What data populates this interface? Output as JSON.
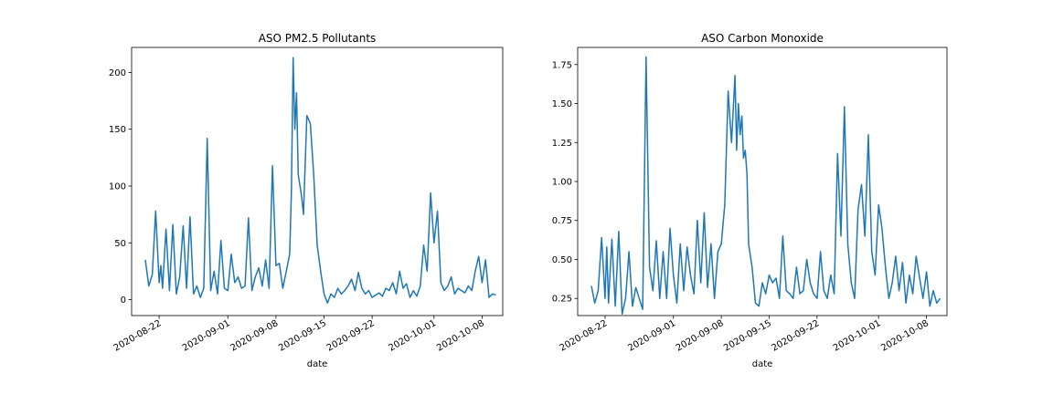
{
  "chart_data": [
    {
      "type": "line",
      "title": "ASO PM2.5 Pollutants",
      "xlabel": "date",
      "ylabel": "",
      "x_ticks": [
        "2020-08-22",
        "2020-09-01",
        "2020-09-08",
        "2020-09-15",
        "2020-09-22",
        "2020-10-01",
        "2020-10-08"
      ],
      "y_ticks": [
        "0",
        "50",
        "100",
        "150",
        "200"
      ],
      "xlim": [
        "2020-08-18",
        "2020-10-11"
      ],
      "ylim": [
        -14,
        222
      ],
      "grid": false,
      "legend": "none",
      "series_color": "#1f77b4",
      "series": [
        {
          "x": [
            "2020-08-20",
            "2020-08-20T12",
            "2020-08-21",
            "2020-08-21T12",
            "2020-08-22",
            "2020-08-22T06",
            "2020-08-22T12",
            "2020-08-23",
            "2020-08-23T12",
            "2020-08-24",
            "2020-08-24T12",
            "2020-08-25",
            "2020-08-25T12",
            "2020-08-26",
            "2020-08-26T12",
            "2020-08-27",
            "2020-08-27T12",
            "2020-08-28",
            "2020-08-28T12",
            "2020-08-29",
            "2020-08-29T12",
            "2020-08-30",
            "2020-08-30T12",
            "2020-08-31",
            "2020-08-31T12",
            "2020-09-01",
            "2020-09-01T12",
            "2020-09-02",
            "2020-09-02T12",
            "2020-09-03",
            "2020-09-03T12",
            "2020-09-04",
            "2020-09-04T12",
            "2020-09-05",
            "2020-09-05T12",
            "2020-09-06",
            "2020-09-06T12",
            "2020-09-07",
            "2020-09-07T12",
            "2020-09-08",
            "2020-09-08T12",
            "2020-09-09",
            "2020-09-09T12",
            "2020-09-10",
            "2020-09-10T06",
            "2020-09-10T12",
            "2020-09-10T18",
            "2020-09-11",
            "2020-09-11T06",
            "2020-09-11T12",
            "2020-09-11T18",
            "2020-09-12",
            "2020-09-12T12",
            "2020-09-13",
            "2020-09-13T12",
            "2020-09-14",
            "2020-09-14T12",
            "2020-09-15",
            "2020-09-15T12",
            "2020-09-16",
            "2020-09-16T12",
            "2020-09-17",
            "2020-09-17T12",
            "2020-09-18",
            "2020-09-18T12",
            "2020-09-19",
            "2020-09-19T12",
            "2020-09-20",
            "2020-09-20T12",
            "2020-09-21",
            "2020-09-21T12",
            "2020-09-22",
            "2020-09-22T12",
            "2020-09-23",
            "2020-09-23T12",
            "2020-09-24",
            "2020-09-24T12",
            "2020-09-25",
            "2020-09-25T12",
            "2020-09-26",
            "2020-09-26T12",
            "2020-09-27",
            "2020-09-27T12",
            "2020-09-28",
            "2020-09-28T12",
            "2020-09-29",
            "2020-09-29T12",
            "2020-09-30",
            "2020-09-30T12",
            "2020-10-01",
            "2020-10-01T12",
            "2020-10-02",
            "2020-10-02T12",
            "2020-10-03",
            "2020-10-03T12",
            "2020-10-04",
            "2020-10-04T12",
            "2020-10-05",
            "2020-10-05T12",
            "2020-10-06",
            "2020-10-06T12",
            "2020-10-07",
            "2020-10-07T12",
            "2020-10-08",
            "2020-10-08T12",
            "2020-10-09",
            "2020-10-09T12",
            "2020-10-10"
          ],
          "values": [
            35,
            12,
            22,
            78,
            15,
            30,
            10,
            62,
            8,
            66,
            5,
            20,
            65,
            10,
            73,
            5,
            12,
            2,
            10,
            142,
            8,
            25,
            5,
            52,
            10,
            8,
            40,
            15,
            20,
            10,
            12,
            72,
            8,
            20,
            28,
            12,
            35,
            10,
            118,
            30,
            32,
            10,
            25,
            40,
            95,
            213,
            150,
            182,
            110,
            100,
            90,
            75,
            162,
            155,
            110,
            48,
            25,
            5,
            -3,
            5,
            2,
            10,
            5,
            8,
            12,
            18,
            8,
            24,
            10,
            5,
            8,
            2,
            4,
            6,
            3,
            10,
            8,
            15,
            5,
            25,
            10,
            14,
            2,
            8,
            3,
            12,
            48,
            25,
            94,
            50,
            78,
            15,
            8,
            12,
            20,
            5,
            10,
            8,
            6,
            12,
            8,
            25,
            38,
            15,
            35,
            2,
            5,
            4
          ]
        }
      ]
    },
    {
      "type": "line",
      "title": "ASO Carbon Monoxide",
      "xlabel": "date",
      "ylabel": "",
      "x_ticks": [
        "2020-08-22",
        "2020-09-01",
        "2020-09-08",
        "2020-09-15",
        "2020-09-22",
        "2020-10-01",
        "2020-10-08"
      ],
      "y_ticks": [
        "0.25",
        "0.50",
        "0.75",
        "1.00",
        "1.25",
        "1.50",
        "1.75"
      ],
      "xlim": [
        "2020-08-18",
        "2020-10-11"
      ],
      "ylim": [
        0.14,
        1.86
      ],
      "grid": false,
      "legend": "none",
      "series_color": "#1f77b4",
      "series": [
        {
          "x": [
            "2020-08-20",
            "2020-08-20T12",
            "2020-08-21",
            "2020-08-21T12",
            "2020-08-22",
            "2020-08-22T06",
            "2020-08-22T12",
            "2020-08-23",
            "2020-08-23T12",
            "2020-08-24",
            "2020-08-24T12",
            "2020-08-25",
            "2020-08-25T12",
            "2020-08-26",
            "2020-08-26T12",
            "2020-08-27",
            "2020-08-27T12",
            "2020-08-28",
            "2020-08-28T12",
            "2020-08-29",
            "2020-08-29T12",
            "2020-08-30",
            "2020-08-30T12",
            "2020-08-31",
            "2020-08-31T12",
            "2020-09-01",
            "2020-09-01T12",
            "2020-09-02",
            "2020-09-02T12",
            "2020-09-03",
            "2020-09-03T12",
            "2020-09-04",
            "2020-09-04T12",
            "2020-09-05",
            "2020-09-05T12",
            "2020-09-06",
            "2020-09-06T12",
            "2020-09-07",
            "2020-09-07T12",
            "2020-09-08",
            "2020-09-08T12",
            "2020-09-09",
            "2020-09-09T12",
            "2020-09-10",
            "2020-09-10T06",
            "2020-09-10T12",
            "2020-09-10T18",
            "2020-09-11",
            "2020-09-11T06",
            "2020-09-11T12",
            "2020-09-11T18",
            "2020-09-12",
            "2020-09-12T12",
            "2020-09-13",
            "2020-09-13T12",
            "2020-09-14",
            "2020-09-14T12",
            "2020-09-15",
            "2020-09-15T12",
            "2020-09-16",
            "2020-09-16T12",
            "2020-09-17",
            "2020-09-17T12",
            "2020-09-18",
            "2020-09-18T12",
            "2020-09-19",
            "2020-09-19T12",
            "2020-09-20",
            "2020-09-20T12",
            "2020-09-21",
            "2020-09-21T12",
            "2020-09-22",
            "2020-09-22T12",
            "2020-09-23",
            "2020-09-23T12",
            "2020-09-24",
            "2020-09-24T12",
            "2020-09-25",
            "2020-09-25T12",
            "2020-09-26",
            "2020-09-26T12",
            "2020-09-27",
            "2020-09-27T12",
            "2020-09-28",
            "2020-09-28T12",
            "2020-09-29",
            "2020-09-29T12",
            "2020-09-30",
            "2020-09-30T12",
            "2020-10-01",
            "2020-10-01T12",
            "2020-10-02",
            "2020-10-02T12",
            "2020-10-03",
            "2020-10-03T12",
            "2020-10-04",
            "2020-10-04T12",
            "2020-10-05",
            "2020-10-05T12",
            "2020-10-06",
            "2020-10-06T12",
            "2020-10-07",
            "2020-10-07T12",
            "2020-10-08",
            "2020-10-08T12",
            "2020-10-09",
            "2020-10-09T12",
            "2020-10-10"
          ],
          "values": [
            0.33,
            0.22,
            0.3,
            0.64,
            0.25,
            0.58,
            0.22,
            0.63,
            0.2,
            0.68,
            0.15,
            0.25,
            0.55,
            0.2,
            0.32,
            0.25,
            0.18,
            1.8,
            0.45,
            0.3,
            0.62,
            0.25,
            0.55,
            0.25,
            0.7,
            0.4,
            0.22,
            0.6,
            0.3,
            0.58,
            0.4,
            0.28,
            0.75,
            0.35,
            0.8,
            0.32,
            0.6,
            0.25,
            0.55,
            0.6,
            0.85,
            1.58,
            1.25,
            1.68,
            1.2,
            1.5,
            1.3,
            1.42,
            1.15,
            1.2,
            1.05,
            0.6,
            0.45,
            0.22,
            0.2,
            0.35,
            0.28,
            0.4,
            0.35,
            0.38,
            0.25,
            0.65,
            0.3,
            0.28,
            0.25,
            0.45,
            0.28,
            0.3,
            0.5,
            0.35,
            0.28,
            0.25,
            0.55,
            0.3,
            0.25,
            0.4,
            0.28,
            1.18,
            0.65,
            1.48,
            0.6,
            0.35,
            0.25,
            0.82,
            0.98,
            0.65,
            1.3,
            0.55,
            0.4,
            0.85,
            0.7,
            0.45,
            0.25,
            0.35,
            0.52,
            0.3,
            0.48,
            0.22,
            0.4,
            0.28,
            0.52,
            0.38,
            0.25,
            0.42,
            0.2,
            0.3,
            0.22,
            0.25
          ]
        }
      ]
    }
  ]
}
